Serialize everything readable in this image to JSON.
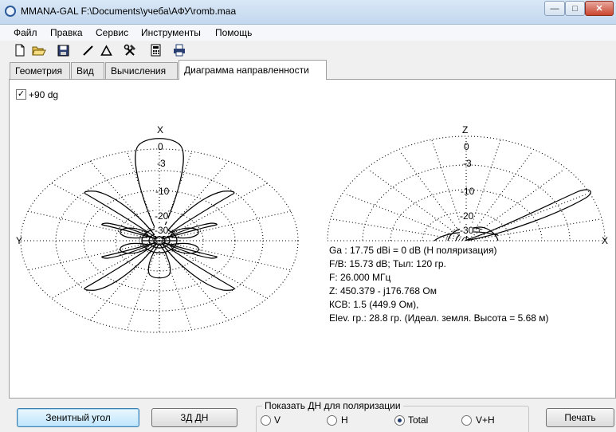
{
  "window": {
    "title": "MMANA-GAL F:\\Documents\\учеба\\АФУ\\romb.maa"
  },
  "menu": [
    "Файл",
    "Правка",
    "Сервис",
    "Инструменты",
    "Помощь"
  ],
  "toolbar_icons": [
    "new-file-icon",
    "open-folder-icon",
    "save-icon",
    "line-tool-icon",
    "triangle-tool-icon",
    "tools-icon",
    "calculator-icon",
    "print-icon"
  ],
  "tabs": [
    {
      "label": "Геометрия",
      "active": false
    },
    {
      "label": "Вид",
      "active": false
    },
    {
      "label": "Вычисления",
      "active": false
    },
    {
      "label": "Диаграмма направленности",
      "active": true
    }
  ],
  "options": {
    "plus90_label": "+90 dg",
    "plus90_checked": true
  },
  "chart_data": [
    {
      "type": "polar",
      "view": "horizontal",
      "axis_top": "X",
      "axis_left": "Y",
      "ring_labels": [
        "0",
        "-3",
        "-10",
        "-20",
        "-30"
      ]
    },
    {
      "type": "polar",
      "view": "vertical",
      "axis_top": "Z",
      "axis_right": "X",
      "ring_labels": [
        "0",
        "-3",
        "-10",
        "-20",
        "-30"
      ]
    }
  ],
  "results": {
    "ga": "Ga : 17.75 dBi = 0 dB  (H поляризация)",
    "fb": "F/B: 15.73 dB; Тыл: 120 гр.",
    "freq": "F: 26.000 МГц",
    "z": "Z: 450.379 - j176.768 Ом",
    "swr": "КСВ: 1.5 (449.9 Ом),",
    "elev": "Elev. гр.: 28.8 гр. (Идеал. земля. Высота = 5.68 м)"
  },
  "buttons": {
    "zenith": "Зенитный угол",
    "view3d": "3Д   ДН",
    "print": "Печать"
  },
  "polarization": {
    "label": "Показать ДН для поляризации",
    "options": [
      "V",
      "H",
      "Total",
      "V+H"
    ],
    "selected": "Total"
  },
  "colors": {
    "titlebar": "#c3d7ee",
    "close_button": "#c9452f",
    "pattern_line": "#000000"
  }
}
